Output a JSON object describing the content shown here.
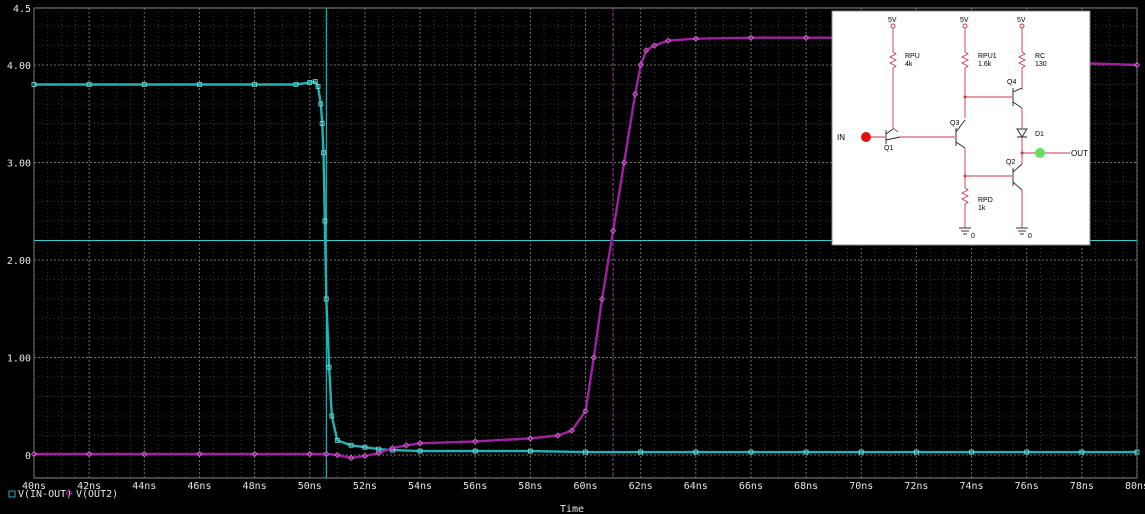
{
  "chart_data": {
    "type": "line",
    "xlabel": "Time",
    "x_ticks": [
      "40ns",
      "42ns",
      "44ns",
      "46ns",
      "48ns",
      "50ns",
      "52ns",
      "54ns",
      "56ns",
      "58ns",
      "60ns",
      "62ns",
      "64ns",
      "66ns",
      "68ns",
      "70ns",
      "72ns",
      "74ns",
      "76ns",
      "78ns",
      "80ns"
    ],
    "y_ticks": [
      "0",
      "1.00",
      "2.00",
      "3.00",
      "4.00",
      "4.5"
    ],
    "xlim": [
      40,
      80
    ],
    "ylim": [
      -0.15,
      4.5
    ],
    "grid": true,
    "legend_position": "bottom-left",
    "cursors": {
      "x1": 50.6,
      "x2": 61.0,
      "y1": 2.2
    },
    "series": [
      {
        "name": "V(IN-OUT)",
        "color": "#1fb5b5",
        "marker": "square",
        "x": [
          40,
          42,
          44,
          46,
          48,
          49.5,
          50.0,
          50.2,
          50.3,
          50.4,
          50.45,
          50.5,
          50.55,
          50.6,
          50.7,
          50.8,
          51,
          51.5,
          52,
          52.5,
          53,
          54,
          56,
          58,
          60,
          62,
          64,
          66,
          68,
          70,
          72,
          74,
          76,
          78,
          80
        ],
        "y": [
          3.8,
          3.8,
          3.8,
          3.8,
          3.8,
          3.8,
          3.82,
          3.83,
          3.78,
          3.6,
          3.4,
          3.1,
          2.4,
          1.6,
          0.9,
          0.4,
          0.15,
          0.1,
          0.08,
          0.06,
          0.05,
          0.04,
          0.04,
          0.04,
          0.03,
          0.03,
          0.03,
          0.03,
          0.03,
          0.03,
          0.03,
          0.03,
          0.03,
          0.03,
          0.03
        ]
      },
      {
        "name": "V(OUT2)",
        "color": "#a020a0",
        "marker": "diamond",
        "x": [
          40,
          42,
          44,
          46,
          48,
          50,
          50.6,
          51,
          51.5,
          52,
          52.5,
          53,
          53.5,
          54,
          56,
          58,
          59,
          59.5,
          60,
          60.3,
          60.6,
          61,
          61.4,
          61.8,
          62,
          62.2,
          62.5,
          63,
          64,
          66,
          68,
          70,
          72,
          74,
          76,
          78,
          80
        ],
        "y": [
          0.01,
          0.01,
          0.01,
          0.01,
          0.01,
          0.01,
          0.01,
          0.0,
          -0.03,
          -0.01,
          0.02,
          0.07,
          0.1,
          0.12,
          0.14,
          0.17,
          0.2,
          0.25,
          0.45,
          1.0,
          1.6,
          2.3,
          3.0,
          3.7,
          4.0,
          4.15,
          4.2,
          4.25,
          4.27,
          4.28,
          4.28,
          4.28,
          4.2,
          4.13,
          4.05,
          4.02,
          4.0
        ]
      }
    ]
  },
  "schematic": {
    "supply_labels": [
      "5V",
      "5V",
      "5V"
    ],
    "resistors": [
      {
        "name": "RPU",
        "value": "4k"
      },
      {
        "name": "RPU1",
        "value": "1.6k"
      },
      {
        "name": "RC",
        "value": "130"
      },
      {
        "name": "RPD",
        "value": "1k"
      }
    ],
    "transistors": [
      "Q1",
      "Q3",
      "Q4",
      "Q2"
    ],
    "diode": "D1",
    "ports": {
      "input": "IN",
      "output": "OUT"
    },
    "grounds": [
      "0",
      "0"
    ],
    "colors": {
      "wire": "#c8384a",
      "input_probe": "#e01010",
      "output_probe": "#5fe05f"
    }
  }
}
